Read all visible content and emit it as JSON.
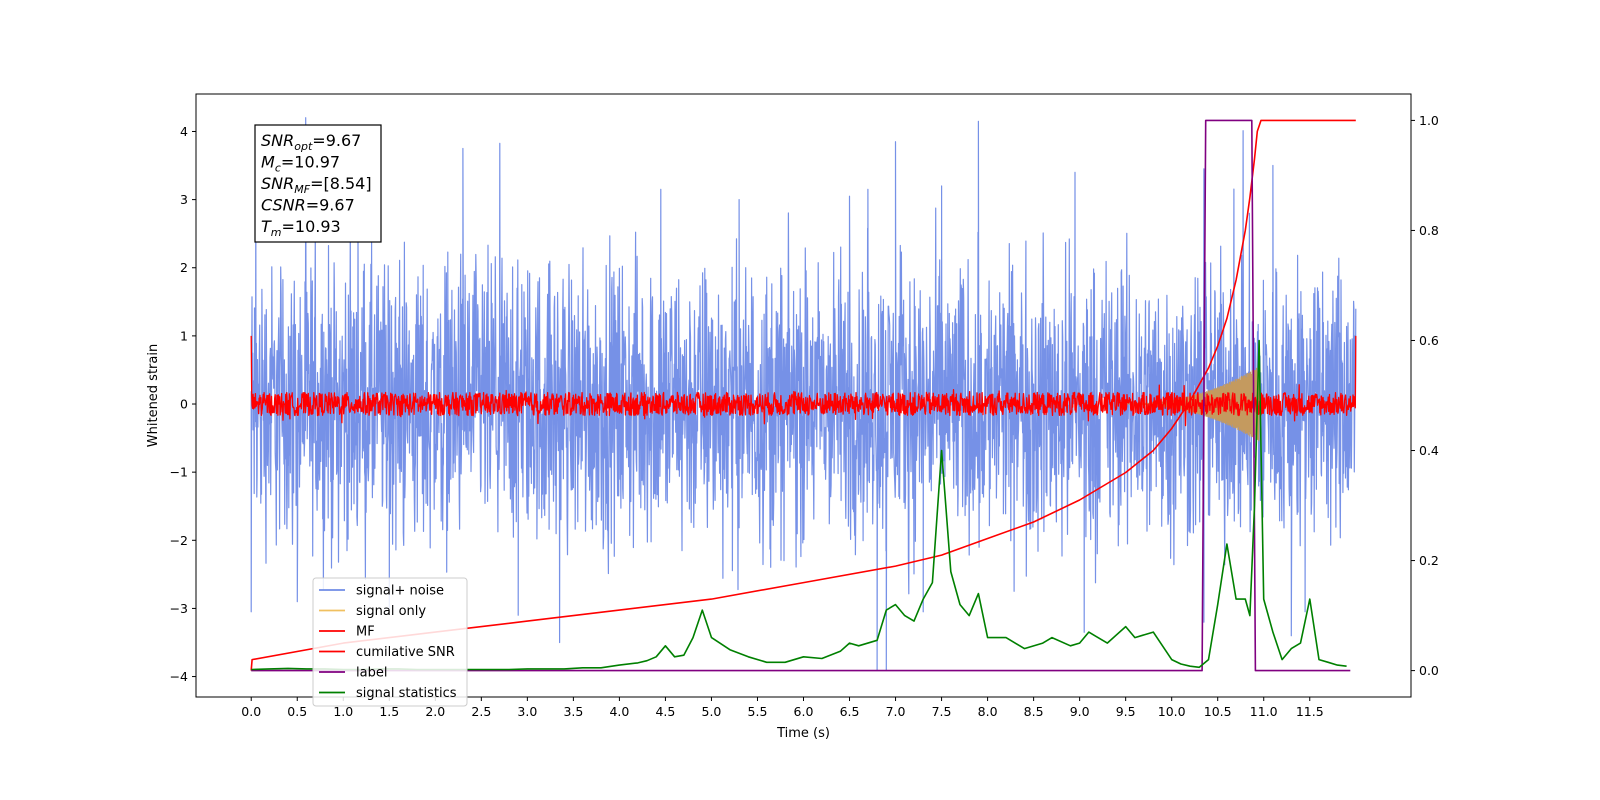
{
  "chart_data": {
    "type": "line",
    "title": "",
    "xlabel": "Time (s)",
    "ylabel": "Whitened strain",
    "y2label": "",
    "xlim": [
      -0.6,
      12.6
    ],
    "ylim": [
      -4.3,
      4.55
    ],
    "y2lim": [
      -0.048,
      1.048
    ],
    "x_ticks": [
      "0.0",
      "0.5",
      "1.0",
      "1.5",
      "2.0",
      "2.5",
      "3.0",
      "3.5",
      "4.0",
      "4.5",
      "5.0",
      "5.5",
      "6.0",
      "6.5",
      "7.0",
      "7.5",
      "8.0",
      "8.5",
      "9.0",
      "9.5",
      "10.0",
      "10.5",
      "11.0",
      "11.5"
    ],
    "y_ticks": [
      "4",
      "3",
      "2",
      "1",
      "0",
      "−1",
      "−2",
      "−3",
      "−4"
    ],
    "y2_ticks": [
      "1.0",
      "0.8",
      "0.6",
      "0.4",
      "0.2",
      "0.0"
    ],
    "annotation_lines": [
      {
        "sym": "SNR",
        "sub": "opt",
        "val": "=9.67"
      },
      {
        "sym": "M",
        "sub": "c",
        "val": "=10.97"
      },
      {
        "sym": "SNR",
        "sub": "MF",
        "val": "=[8.54]"
      },
      {
        "sym": "CSNR",
        "sub": "",
        "val": "=9.67"
      },
      {
        "sym": "T",
        "sub": "m",
        "val": "=10.93"
      }
    ],
    "legend_position": "lower-left",
    "series": [
      {
        "name": "signal+ noise",
        "color": "#6f8be6",
        "axis": "left",
        "kind": "noise",
        "x_range": [
          0,
          12
        ],
        "envelope": 1.4,
        "peaks_up": [
          [
            0.05,
            3.55
          ],
          [
            2.3,
            3.75
          ],
          [
            4.45,
            3.15
          ],
          [
            5.3,
            3.0
          ],
          [
            6.5,
            3.05
          ],
          [
            6.7,
            3.15
          ],
          [
            7.0,
            3.85
          ],
          [
            7.5,
            3.2
          ],
          [
            7.9,
            4.15
          ],
          [
            8.95,
            3.4
          ],
          [
            10.35,
            3.45
          ],
          [
            11.1,
            3.5
          ]
        ],
        "peaks_down": [
          [
            0.0,
            -3.05
          ],
          [
            0.5,
            -2.9
          ],
          [
            1.5,
            -3.0
          ],
          [
            2.9,
            -3.1
          ],
          [
            3.35,
            -3.5
          ],
          [
            6.8,
            -3.9
          ],
          [
            6.9,
            -3.9
          ],
          [
            7.3,
            -3.05
          ],
          [
            9.05,
            -3.35
          ],
          [
            10.35,
            -3.2
          ],
          [
            11.3,
            -3.4
          ],
          [
            11.45,
            -3.05
          ]
        ]
      },
      {
        "name": "signal only",
        "color": "#e8c06a",
        "axis": "left",
        "kind": "chirp",
        "x_range": [
          9.5,
          10.95
        ],
        "peak_amp": 0.55
      },
      {
        "name": "MF",
        "color": "#ff0000",
        "axis": "left",
        "kind": "mf",
        "x_range": [
          0,
          12
        ],
        "envelope": 0.2,
        "start_value": 1.0,
        "end_value": 1.0
      },
      {
        "name": "cumilative SNR",
        "color": "#ff0000",
        "axis": "right",
        "x": [
          0.0,
          0.01,
          1.0,
          2.0,
          3.0,
          4.0,
          5.0,
          6.0,
          7.0,
          7.5,
          8.0,
          8.5,
          9.0,
          9.5,
          9.8,
          10.0,
          10.2,
          10.4,
          10.5,
          10.6,
          10.7,
          10.8,
          10.85,
          10.9,
          10.93,
          10.97,
          11.0,
          12.0
        ],
        "y": [
          0.0,
          0.02,
          0.05,
          0.07,
          0.09,
          0.11,
          0.13,
          0.16,
          0.19,
          0.21,
          0.24,
          0.27,
          0.31,
          0.36,
          0.4,
          0.44,
          0.49,
          0.55,
          0.59,
          0.64,
          0.71,
          0.8,
          0.86,
          0.93,
          0.98,
          1.0,
          1.0,
          1.0
        ]
      },
      {
        "name": "label",
        "color": "#800080",
        "axis": "right",
        "x": [
          0.0,
          10.33,
          10.37,
          10.87,
          10.91,
          11.94
        ],
        "y": [
          0.0,
          0.0,
          1.0,
          1.0,
          0.0,
          0.0
        ]
      },
      {
        "name": "signal statistics",
        "color": "#008000",
        "axis": "right",
        "x": [
          0.0,
          0.2,
          0.4,
          0.6,
          0.8,
          1.0,
          1.2,
          1.4,
          1.6,
          1.8,
          2.0,
          2.2,
          2.4,
          2.6,
          2.8,
          3.0,
          3.2,
          3.4,
          3.6,
          3.8,
          4.0,
          4.2,
          4.3,
          4.4,
          4.5,
          4.6,
          4.7,
          4.8,
          4.9,
          5.0,
          5.2,
          5.4,
          5.6,
          5.8,
          6.0,
          6.2,
          6.4,
          6.5,
          6.6,
          6.8,
          6.9,
          7.0,
          7.1,
          7.2,
          7.3,
          7.4,
          7.5,
          7.6,
          7.7,
          7.8,
          7.9,
          8.0,
          8.2,
          8.4,
          8.6,
          8.7,
          8.9,
          9.0,
          9.1,
          9.2,
          9.3,
          9.5,
          9.6,
          9.8,
          10.0,
          10.1,
          10.2,
          10.3,
          10.4,
          10.5,
          10.6,
          10.7,
          10.8,
          10.85,
          10.9,
          10.95,
          11.0,
          11.1,
          11.2,
          11.3,
          11.4,
          11.5,
          11.6,
          11.7,
          11.8,
          11.9
        ],
        "y": [
          0.002,
          0.003,
          0.004,
          0.003,
          0.003,
          0.002,
          0.002,
          0.003,
          0.003,
          0.002,
          0.002,
          0.002,
          0.002,
          0.002,
          0.002,
          0.003,
          0.003,
          0.003,
          0.005,
          0.005,
          0.01,
          0.014,
          0.018,
          0.025,
          0.045,
          0.025,
          0.028,
          0.06,
          0.11,
          0.06,
          0.038,
          0.025,
          0.015,
          0.015,
          0.025,
          0.022,
          0.035,
          0.05,
          0.045,
          0.055,
          0.11,
          0.12,
          0.1,
          0.09,
          0.13,
          0.16,
          0.4,
          0.18,
          0.12,
          0.1,
          0.14,
          0.06,
          0.06,
          0.04,
          0.05,
          0.06,
          0.045,
          0.05,
          0.07,
          0.06,
          0.05,
          0.08,
          0.06,
          0.07,
          0.02,
          0.012,
          0.008,
          0.006,
          0.02,
          0.12,
          0.23,
          0.13,
          0.13,
          0.1,
          0.3,
          0.6,
          0.13,
          0.07,
          0.02,
          0.04,
          0.05,
          0.13,
          0.02,
          0.015,
          0.01,
          0.008
        ]
      }
    ]
  }
}
